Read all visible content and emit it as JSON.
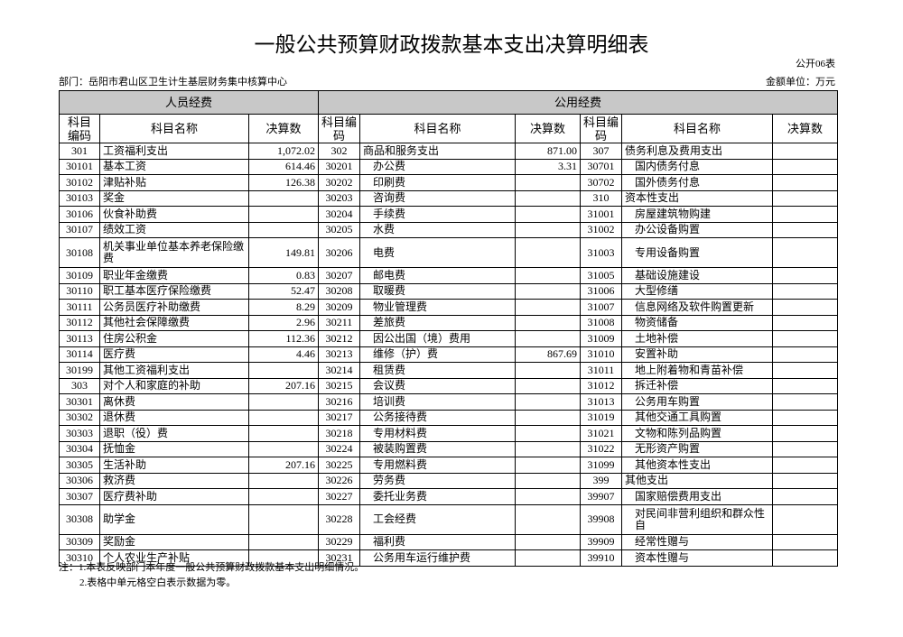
{
  "header": {
    "title": "一般公共预算财政拨款基本支出决算明细表",
    "form_no": "公开06表",
    "department": "部门：岳阳市君山区卫生计生基层财务集中核算中心",
    "unit": "金额单位：万元"
  },
  "table": {
    "group_headers": [
      "人员经费",
      "公用经费"
    ],
    "column_headers": [
      "科目编码",
      "科目名称",
      "决算数",
      "科目编码",
      "科目名称",
      "决算数",
      "科目编码",
      "科目名称",
      "决算数"
    ],
    "rows": [
      [
        "301",
        "工资福利支出",
        "1,072.02",
        "302",
        "商品和服务支出",
        "871.00",
        "307",
        "债务利息及费用支出",
        null
      ],
      [
        "30101",
        "基本工资",
        "614.46",
        "30201",
        "办公费",
        "3.31",
        "30701",
        "国内债务付息",
        null
      ],
      [
        "30102",
        "津贴补贴",
        "126.38",
        "30202",
        "印刷费",
        null,
        "30702",
        "国外债务付息",
        null
      ],
      [
        "30103",
        "奖金",
        null,
        "30203",
        "咨询费",
        null,
        "310",
        "资本性支出",
        null
      ],
      [
        "30106",
        "伙食补助费",
        null,
        "30204",
        "手续费",
        null,
        "31001",
        "房屋建筑物购建",
        null
      ],
      [
        "30107",
        "绩效工资",
        null,
        "30205",
        "水费",
        null,
        "31002",
        "办公设备购置",
        null
      ],
      [
        "30108",
        "机关事业单位基本养老保险缴费",
        "149.81",
        "30206",
        "电费",
        null,
        "31003",
        "专用设备购置",
        null
      ],
      [
        "30109",
        "职业年金缴费",
        "0.83",
        "30207",
        "邮电费",
        null,
        "31005",
        "基础设施建设",
        null
      ],
      [
        "30110",
        "职工基本医疗保险缴费",
        "52.47",
        "30208",
        "取暖费",
        null,
        "31006",
        "大型修缮",
        null
      ],
      [
        "30111",
        "公务员医疗补助缴费",
        "8.29",
        "30209",
        "物业管理费",
        null,
        "31007",
        "信息网络及软件购置更新",
        null
      ],
      [
        "30112",
        "其他社会保障缴费",
        "2.96",
        "30211",
        "差旅费",
        null,
        "31008",
        "物资储备",
        null
      ],
      [
        "30113",
        "住房公积金",
        "112.36",
        "30212",
        "因公出国（境）费用",
        null,
        "31009",
        "土地补偿",
        null
      ],
      [
        "30114",
        "医疗费",
        "4.46",
        "30213",
        "维修（护）费",
        "867.69",
        "31010",
        "安置补助",
        null
      ],
      [
        "30199",
        "其他工资福利支出",
        null,
        "30214",
        "租赁费",
        null,
        "31011",
        "地上附着物和青苗补偿",
        null
      ],
      [
        "303",
        "对个人和家庭的补助",
        "207.16",
        "30215",
        "会议费",
        null,
        "31012",
        "拆迁补偿",
        null
      ],
      [
        "30301",
        "离休费",
        null,
        "30216",
        "培训费",
        null,
        "31013",
        "公务用车购置",
        null
      ],
      [
        "30302",
        "退休费",
        null,
        "30217",
        "公务接待费",
        null,
        "31019",
        "其他交通工具购置",
        null
      ],
      [
        "30303",
        "退职（役）费",
        null,
        "30218",
        "专用材料费",
        null,
        "31021",
        "文物和陈列品购置",
        null
      ],
      [
        "30304",
        "抚恤金",
        null,
        "30224",
        "被装购置费",
        null,
        "31022",
        "无形资产购置",
        null
      ],
      [
        "30305",
        "生活补助",
        "207.16",
        "30225",
        "专用燃料费",
        null,
        "31099",
        "其他资本性支出",
        null
      ],
      [
        "30306",
        "救济费",
        null,
        "30226",
        "劳务费",
        null,
        "399",
        "其他支出",
        null
      ],
      [
        "30307",
        "医疗费补助",
        null,
        "30227",
        "委托业务费",
        null,
        "39907",
        "国家赔偿费用支出",
        null
      ],
      [
        "30308",
        "助学金",
        null,
        "30228",
        "工会经费",
        null,
        "39908",
        "对民间非营利组织和群众性自",
        null
      ],
      [
        "30309",
        "奖励金",
        null,
        "30229",
        "福利费",
        null,
        "39909",
        "经常性赠与",
        null
      ],
      [
        "30310",
        "个人农业生产补贴",
        null,
        "30231",
        "公务用车运行维护费",
        null,
        "39910",
        "资本性赠与",
        null
      ]
    ]
  },
  "notes": [
    "注：1.本表反映部门本年度一般公共预算财政拨款基本支出明细情况。",
    "2.表格中单元格空白表示数据为零。"
  ]
}
